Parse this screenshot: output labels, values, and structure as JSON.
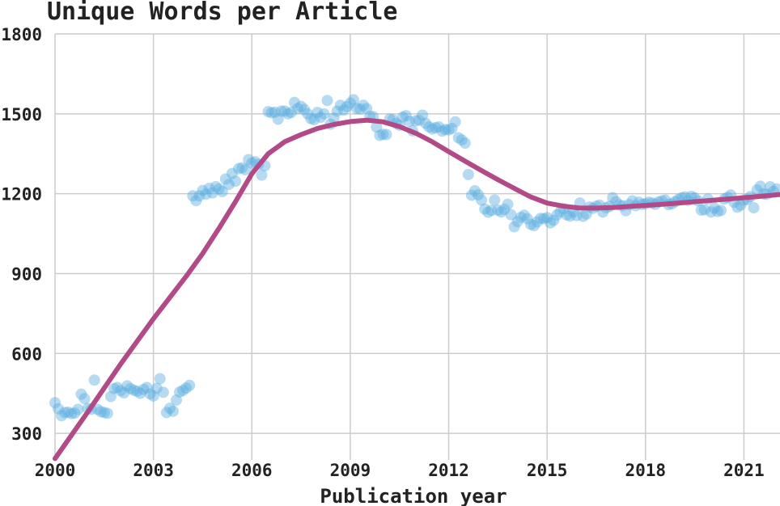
{
  "chart_data": {
    "type": "scatter",
    "title": "Unique Words per Article",
    "xlabel": "Publication year",
    "ylabel": "",
    "xlim": [
      2000,
      2022.1
    ],
    "ylim": [
      200,
      1800
    ],
    "grid": true,
    "x_ticks": [
      2000,
      2003,
      2006,
      2009,
      2012,
      2015,
      2018,
      2021
    ],
    "y_ticks": [
      300,
      600,
      900,
      1200,
      1500,
      1800
    ],
    "colors": {
      "points": "#5aaee0",
      "trend": "#b14a87",
      "grid": "#cccccc"
    },
    "series": [
      {
        "kind": "scatter",
        "x": [
          2000.0,
          2000.1,
          2000.2,
          2000.3,
          2000.4,
          2000.5,
          2000.6,
          2000.7,
          2000.8,
          2000.9,
          2001.0,
          2001.1,
          2001.2,
          2001.3,
          2001.4,
          2001.5,
          2001.6,
          2001.7,
          2001.8,
          2001.9,
          2002.0,
          2002.1,
          2002.2,
          2002.3,
          2002.4,
          2002.5,
          2002.6,
          2002.7,
          2002.8,
          2002.9,
          2003.0,
          2003.1,
          2003.2,
          2003.3,
          2003.4,
          2003.5,
          2003.6,
          2003.7,
          2003.8,
          2003.9,
          2004.0,
          2004.1,
          2004.2,
          2004.3,
          2004.4,
          2004.5,
          2004.6,
          2004.7,
          2004.8,
          2004.9,
          2005.0,
          2005.1,
          2005.2,
          2005.3,
          2005.4,
          2005.5,
          2005.6,
          2005.7,
          2005.8,
          2005.9,
          2006.0,
          2006.1,
          2006.2,
          2006.3,
          2006.4,
          2006.5,
          2006.6,
          2006.7,
          2006.8,
          2006.9,
          2007.0,
          2007.1,
          2007.2,
          2007.3,
          2007.4,
          2007.5,
          2007.6,
          2007.7,
          2007.8,
          2007.9,
          2008.0,
          2008.1,
          2008.2,
          2008.3,
          2008.4,
          2008.5,
          2008.6,
          2008.7,
          2008.8,
          2008.9,
          2009.0,
          2009.1,
          2009.2,
          2009.3,
          2009.4,
          2009.5,
          2009.6,
          2009.7,
          2009.8,
          2009.9,
          2010.0,
          2010.1,
          2010.2,
          2010.3,
          2010.4,
          2010.5,
          2010.6,
          2010.7,
          2010.8,
          2010.9,
          2011.0,
          2011.1,
          2011.2,
          2011.3,
          2011.4,
          2011.5,
          2011.6,
          2011.7,
          2011.8,
          2011.9,
          2012.0,
          2012.1,
          2012.2,
          2012.3,
          2012.4,
          2012.5,
          2012.6,
          2012.7,
          2012.8,
          2012.9,
          2013.0,
          2013.1,
          2013.2,
          2013.3,
          2013.4,
          2013.5,
          2013.6,
          2013.7,
          2013.8,
          2013.9,
          2014.0,
          2014.1,
          2014.2,
          2014.3,
          2014.4,
          2014.5,
          2014.6,
          2014.7,
          2014.8,
          2014.9,
          2015.0,
          2015.1,
          2015.2,
          2015.3,
          2015.4,
          2015.5,
          2015.6,
          2015.7,
          2015.8,
          2015.9,
          2016.0,
          2016.1,
          2016.2,
          2016.3,
          2016.4,
          2016.5,
          2016.6,
          2016.7,
          2016.8,
          2016.9,
          2017.0,
          2017.1,
          2017.2,
          2017.3,
          2017.4,
          2017.5,
          2017.6,
          2017.7,
          2017.8,
          2017.9,
          2018.0,
          2018.1,
          2018.2,
          2018.3,
          2018.4,
          2018.5,
          2018.6,
          2018.7,
          2018.8,
          2018.9,
          2019.0,
          2019.1,
          2019.2,
          2019.3,
          2019.4,
          2019.5,
          2019.6,
          2019.7,
          2019.8,
          2019.9,
          2020.0,
          2020.1,
          2020.2,
          2020.3,
          2020.4,
          2020.5,
          2020.6,
          2020.7,
          2020.8,
          2020.9,
          2021.0,
          2021.1,
          2021.2,
          2021.3,
          2021.4,
          2021.5,
          2021.6,
          2021.7,
          2021.8,
          2021.9,
          2022.0
        ],
        "y": [
          415,
          392,
          366,
          378,
          379,
          374,
          376,
          390,
          447,
          430,
          393,
          390,
          500,
          390,
          381,
          378,
          375,
          438,
          468,
          472,
          460,
          452,
          478,
          468,
          462,
          458,
          450,
          465,
          472,
          448,
          440,
          469,
          505,
          454,
          378,
          394,
          383,
          425,
          455,
          461,
          470,
          480,
          1192,
          1174,
          1192,
          1212,
          1198,
          1220,
          1203,
          1226,
          1218,
          1208,
          1255,
          1235,
          1276,
          1247,
          1294,
          1297,
          1290,
          1328,
          1315,
          1320,
          1310,
          1270,
          1305,
          1508,
          1504,
          1506,
          1480,
          1510,
          1510,
          1500,
          1505,
          1543,
          1520,
          1528,
          1516,
          1500,
          1482,
          1478,
          1505,
          1487,
          1500,
          1550,
          1461,
          1484,
          1510,
          1532,
          1514,
          1527,
          1540,
          1553,
          1520,
          1518,
          1532,
          1520,
          1491,
          1489,
          1450,
          1419,
          1423,
          1422,
          1480,
          1478,
          1464,
          1457,
          1488,
          1493,
          1472,
          1436,
          1474,
          1476,
          1495,
          1464,
          1451,
          1443,
          1448,
          1451,
          1435,
          1441,
          1440,
          1445,
          1470,
          1410,
          1402,
          1390,
          1272,
          1194,
          1211,
          1196,
          1176,
          1142,
          1130,
          1137,
          1176,
          1138,
          1131,
          1141,
          1160,
          1121,
          1076,
          1095,
          1111,
          1119,
          1106,
          1085,
          1080,
          1094,
          1107,
          1106,
          1110,
          1090,
          1100,
          1120,
          1132,
          1144,
          1120,
          1116,
          1132,
          1118,
          1165,
          1115,
          1124,
          1150,
          1145,
          1153,
          1157,
          1131,
          1147,
          1152,
          1185,
          1170,
          1158,
          1155,
          1136,
          1159,
          1173,
          1155,
          1168,
          1160,
          1162,
          1168,
          1165,
          1160,
          1169,
          1173,
          1176,
          1159,
          1162,
          1170,
          1178,
          1184,
          1188,
          1175,
          1190,
          1184,
          1173,
          1138,
          1140,
          1180,
          1131,
          1146,
          1133,
          1137,
          1180,
          1186,
          1195,
          1168,
          1149,
          1157,
          1176,
          1178,
          1189,
          1147,
          1214,
          1228,
          1199,
          1198,
          1226,
          1208,
          1218
        ]
      },
      {
        "kind": "line",
        "x": [
          2000.0,
          2001.0,
          2002.0,
          2003.0,
          2004.0,
          2004.5,
          2005.0,
          2005.5,
          2006.0,
          2006.5,
          2007.0,
          2007.5,
          2008.0,
          2008.5,
          2009.0,
          2009.5,
          2010.0,
          2010.5,
          2011.0,
          2011.5,
          2012.0,
          2012.5,
          2013.0,
          2013.5,
          2014.0,
          2014.5,
          2015.0,
          2015.5,
          2016.0,
          2016.5,
          2017.0,
          2017.5,
          2018.0,
          2018.5,
          2019.0,
          2019.5,
          2020.0,
          2020.5,
          2021.0,
          2021.5,
          2022.1
        ],
        "y": [
          205,
          380,
          560,
          730,
          890,
          975,
          1070,
          1170,
          1275,
          1350,
          1395,
          1422,
          1445,
          1460,
          1471,
          1476,
          1470,
          1452,
          1427,
          1395,
          1358,
          1322,
          1287,
          1253,
          1220,
          1188,
          1165,
          1153,
          1146,
          1146,
          1148,
          1152,
          1156,
          1160,
          1165,
          1170,
          1175,
          1180,
          1185,
          1190,
          1197
        ]
      }
    ]
  }
}
